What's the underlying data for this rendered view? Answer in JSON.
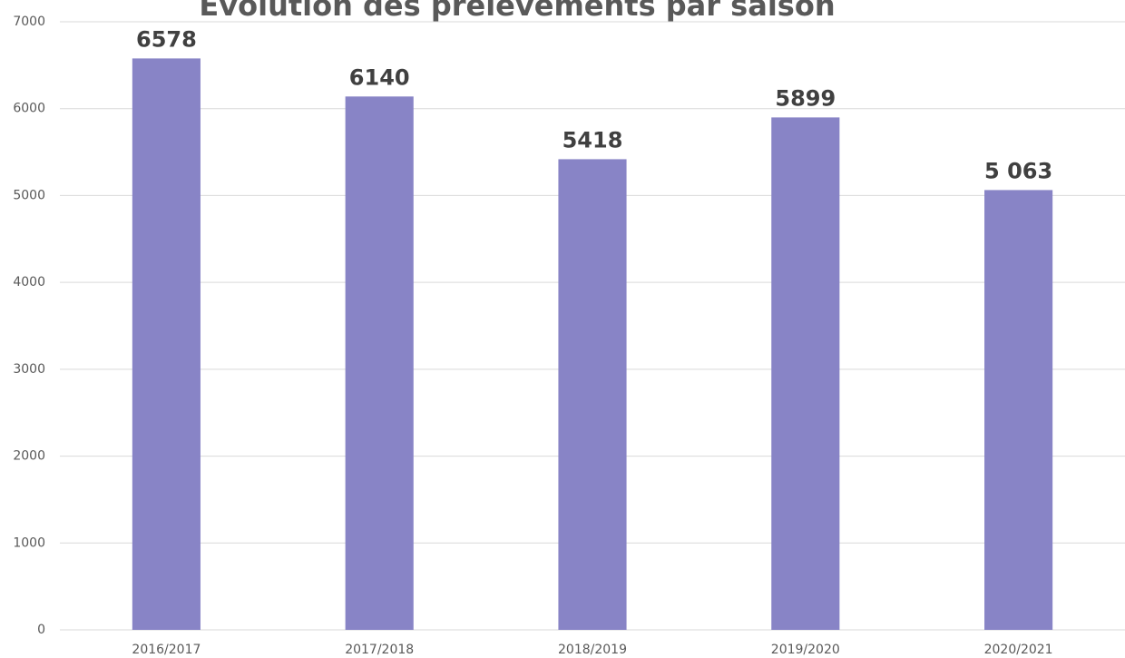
{
  "chart_data": {
    "type": "bar",
    "title": "Évolution des prélèvements par saison",
    "categories": [
      "2016/2017",
      "2017/2018",
      "2018/2019",
      "2019/2020",
      "2020/2021"
    ],
    "values": [
      6578,
      6140,
      5418,
      5899,
      5063
    ],
    "value_labels": [
      "6578",
      "6140",
      "5418",
      "5899",
      "5 063"
    ],
    "color": "#8884c6",
    "ylim": [
      0,
      7000
    ],
    "yticks": [
      0,
      1000,
      2000,
      3000,
      4000,
      5000,
      6000,
      7000
    ],
    "grid": true
  }
}
